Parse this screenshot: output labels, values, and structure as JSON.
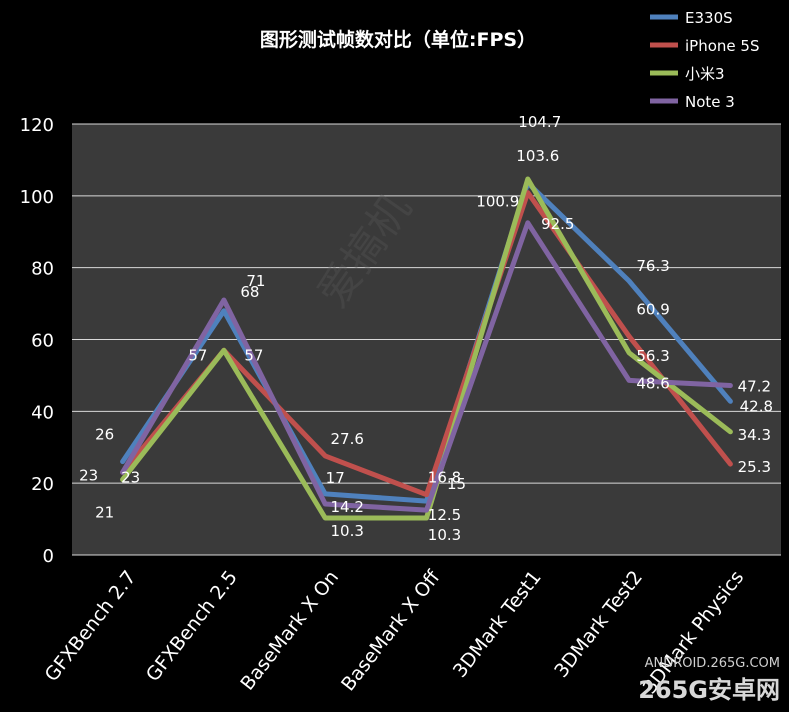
{
  "chart_data": {
    "type": "line",
    "title": "图形测试帧数对比（单位:FPS）",
    "categories": [
      "GFXBench 2.7",
      "GFXBench 2.5",
      "BaseMark X On",
      "BaseMark X Off",
      "3DMark Test1",
      "3DMark Test2",
      "3DMark Physics"
    ],
    "ylim": [
      0,
      120
    ],
    "yticks": [
      0,
      20,
      40,
      60,
      80,
      100,
      120
    ],
    "grid": true,
    "legend_position": "top-right",
    "series": [
      {
        "name": "E330S",
        "color": "#4F81BD",
        "values": [
          26,
          68,
          17,
          15,
          103.6,
          76.3,
          42.8
        ]
      },
      {
        "name": "iPhone 5S",
        "color": "#C0504D",
        "values": [
          23,
          57,
          27.6,
          16.8,
          100.9,
          60.9,
          25.3
        ]
      },
      {
        "name": "小米3",
        "color": "#9BBB59",
        "values": [
          21,
          57,
          10.3,
          10.3,
          104.7,
          56.3,
          34.3
        ]
      },
      {
        "name": "Note 3",
        "color": "#8064A2",
        "values": [
          23,
          71,
          14.2,
          12.5,
          92.5,
          48.6,
          47.2
        ]
      }
    ]
  },
  "watermark": {
    "brand_left": "爱搞机",
    "brand_site": "ANDROID.265G.COM",
    "brand_main": "265G安卓网"
  }
}
